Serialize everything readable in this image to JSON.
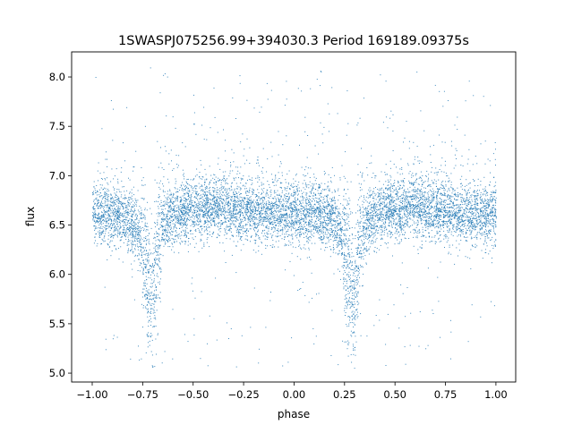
{
  "chart_data": {
    "type": "scatter",
    "title": "1SWASPJ075256.99+394030.3 Period 169189.09375s",
    "xlabel": "phase",
    "ylabel": "flux",
    "xlim": [
      -1.102,
      1.098
    ],
    "ylim": [
      4.91,
      8.254
    ],
    "xticks": [
      -1.0,
      -0.75,
      -0.5,
      -0.25,
      0.0,
      0.25,
      0.5,
      0.75,
      1.0
    ],
    "xtick_labels": [
      "−1.00",
      "−0.75",
      "−0.50",
      "−0.25",
      "0.00",
      "0.25",
      "0.50",
      "0.75",
      "1.00"
    ],
    "yticks": [
      5.0,
      5.5,
      6.0,
      6.5,
      7.0,
      7.5,
      8.0
    ],
    "ytick_labels": [
      "5.0",
      "5.5",
      "6.0",
      "6.5",
      "7.0",
      "7.5",
      "8.0"
    ],
    "grid": false,
    "marker_color": "#1f77b4",
    "phase_range": [
      -1.0,
      1.0
    ],
    "flux_range": [
      5.05,
      8.1
    ],
    "median_light_curve_per_cycle": {
      "phase": [
        0.0,
        0.1,
        0.18,
        0.22,
        0.25,
        0.27,
        0.29,
        0.31,
        0.33,
        0.36,
        0.45,
        0.6,
        0.8,
        1.0
      ],
      "flux": [
        6.6,
        6.62,
        6.55,
        6.45,
        6.3,
        6.0,
        5.6,
        6.0,
        6.4,
        6.55,
        6.65,
        6.68,
        6.62,
        6.6
      ]
    },
    "typical_scatter": 0.15
  }
}
